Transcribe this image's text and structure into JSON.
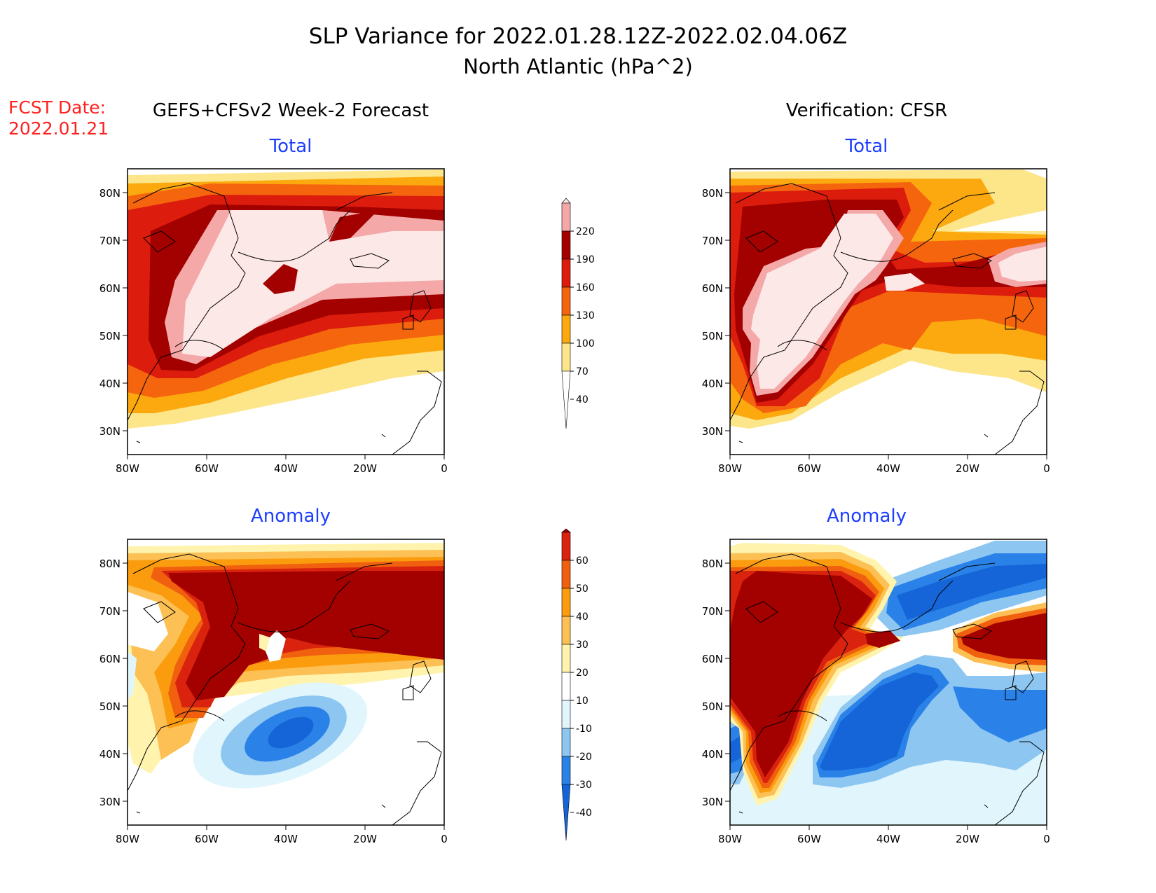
{
  "header": {
    "title_line1": "SLP Variance for 2022.01.28.12Z-2022.02.04.06Z",
    "title_line2": "North Atlantic (hPa^2)",
    "fcst_label": "FCST Date:",
    "fcst_date": "2022.01.21",
    "left_heading": "GEFS+CFSv2 Week-2 Forecast",
    "right_heading": "Verification: CFSR"
  },
  "panels": [
    {
      "id": "fcst-total",
      "title": "Total",
      "kind": "total"
    },
    {
      "id": "verif-total",
      "title": "Total",
      "kind": "total"
    },
    {
      "id": "fcst-anomaly",
      "title": "Anomaly",
      "kind": "anomaly"
    },
    {
      "id": "verif-anomaly",
      "title": "Anomaly",
      "kind": "anomaly"
    }
  ],
  "axes": {
    "lon_labels": [
      "80W",
      "60W",
      "40W",
      "20W",
      "0"
    ],
    "lat_labels": [
      "80N",
      "70N",
      "60N",
      "50N",
      "40N",
      "30N"
    ],
    "lon_range": [
      -80,
      0
    ],
    "lat_range": [
      25,
      85
    ]
  },
  "colorbars": {
    "total": {
      "levels": [
        "40",
        "70",
        "100",
        "130",
        "160",
        "190",
        "220"
      ],
      "colors": [
        "#ffffff",
        "#fde58a",
        "#fba90f",
        "#f5650e",
        "#dc1c0c",
        "#a30000",
        "#f4a8a8",
        "#fde8e8"
      ]
    },
    "anomaly": {
      "levels": [
        "-40",
        "-30",
        "-20",
        "-10",
        "10",
        "20",
        "30",
        "40",
        "50",
        "60"
      ],
      "colors": [
        "#1565d8",
        "#2a82e8",
        "#8ec6f2",
        "#e0f6fc",
        "#ffffff",
        "#fff3ad",
        "#fcc054",
        "#fb9c0f",
        "#f0600f",
        "#d9230e",
        "#a30000"
      ]
    }
  },
  "colors": {
    "title": "#000000",
    "fcst_date": "#ff2020",
    "panel_title": "#1a3dff"
  }
}
